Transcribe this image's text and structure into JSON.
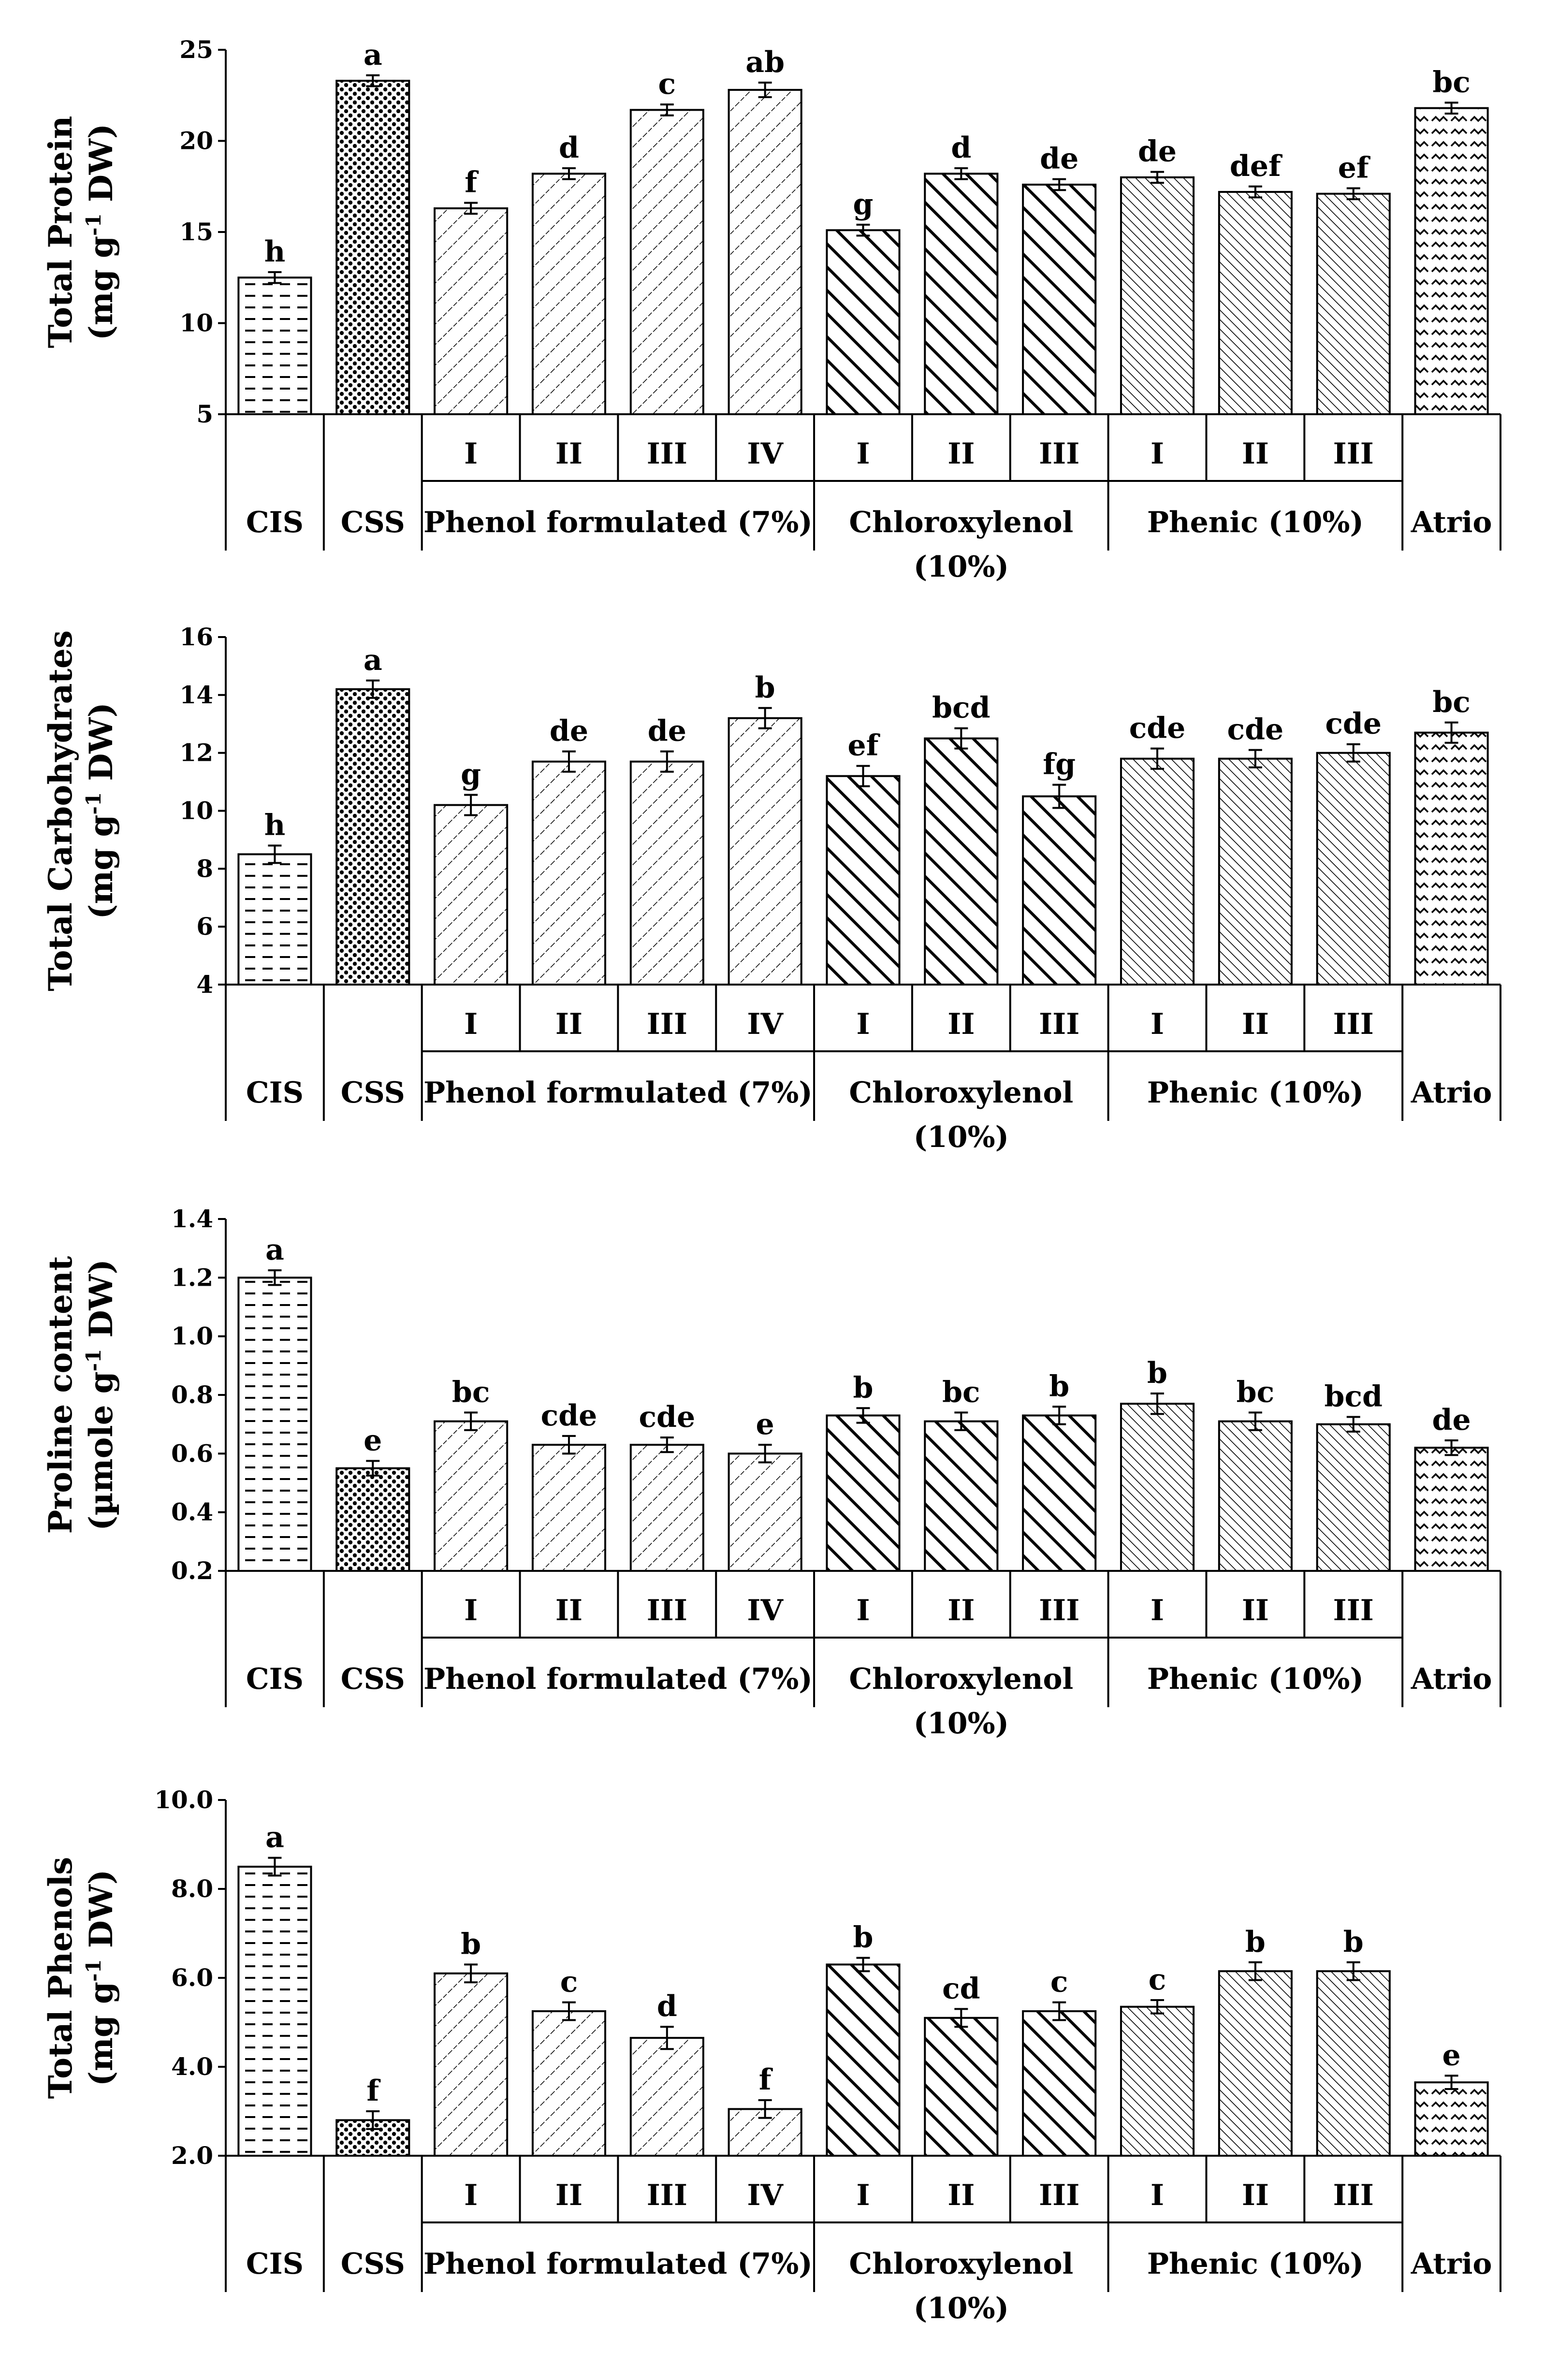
{
  "chart_data": [
    {
      "type": "bar",
      "ylabel_line1": "Total Protein",
      "ylabel_line2": "(mg g",
      "ylabel_sup": "-1",
      "ylabel_line2_tail": " DW)",
      "ylim": [
        5,
        25
      ],
      "yticks": [
        "5",
        "10",
        "15",
        "20",
        "25"
      ],
      "categories": [
        "CIS",
        "CSS",
        "Phenol formulated (7%) I",
        "Phenol formulated (7%) II",
        "Phenol formulated (7%) III",
        "Phenol formulated (7%) IV",
        "Chloroxylenol (10%) I",
        "Chloroxylenol (10%) II",
        "Chloroxylenol (10%) III",
        "Phenic (10%) I",
        "Phenic (10%) II",
        "Phenic (10%) III",
        "Atrio"
      ],
      "values": [
        12.5,
        23.3,
        16.3,
        18.2,
        21.7,
        22.8,
        15.1,
        18.2,
        17.6,
        18.0,
        17.2,
        17.1,
        21.8
      ],
      "errors": [
        0.3,
        0.3,
        0.3,
        0.3,
        0.3,
        0.4,
        0.3,
        0.3,
        0.3,
        0.3,
        0.3,
        0.3,
        0.3
      ],
      "letters": [
        "h",
        "a",
        "f",
        "d",
        "c",
        "ab",
        "g",
        "d",
        "de",
        "de",
        "def",
        "ef",
        "bc"
      ],
      "grid": false
    },
    {
      "type": "bar",
      "ylabel_line1": "Total Carbohydrates",
      "ylabel_line2": "(mg g",
      "ylabel_sup": "-1",
      "ylabel_line2_tail": " DW)",
      "ylim": [
        4,
        16
      ],
      "yticks": [
        "4",
        "6",
        "8",
        "10",
        "12",
        "14",
        "16"
      ],
      "categories": [
        "CIS",
        "CSS",
        "Phenol formulated (7%) I",
        "Phenol formulated (7%) II",
        "Phenol formulated (7%) III",
        "Phenol formulated (7%) IV",
        "Chloroxylenol (10%) I",
        "Chloroxylenol (10%) II",
        "Chloroxylenol (10%) III",
        "Phenic (10%) I",
        "Phenic (10%) II",
        "Phenic (10%) III",
        "Atrio"
      ],
      "values": [
        8.5,
        14.2,
        10.2,
        11.7,
        11.7,
        13.2,
        11.2,
        12.5,
        10.5,
        11.8,
        11.8,
        12.0,
        12.7
      ],
      "errors": [
        0.3,
        0.3,
        0.35,
        0.35,
        0.35,
        0.35,
        0.35,
        0.35,
        0.4,
        0.35,
        0.3,
        0.3,
        0.35
      ],
      "letters": [
        "h",
        "a",
        "g",
        "de",
        "de",
        "b",
        "ef",
        "bcd",
        "fg",
        "cde",
        "cde",
        "cde",
        "bc"
      ],
      "grid": false
    },
    {
      "type": "bar",
      "ylabel_line1": "Proline content",
      "ylabel_line2": "(µmole g",
      "ylabel_sup": "-1",
      "ylabel_line2_tail": " DW)",
      "ylim": [
        0.2,
        1.4
      ],
      "yticks": [
        "0.2",
        "0.4",
        "0.6",
        "0.8",
        "1.0",
        "1.2",
        "1.4"
      ],
      "categories": [
        "CIS",
        "CSS",
        "Phenol formulated (7%) I",
        "Phenol formulated (7%) II",
        "Phenol formulated (7%) III",
        "Phenol formulated (7%) IV",
        "Chloroxylenol (10%) I",
        "Chloroxylenol (10%) II",
        "Chloroxylenol (10%) III",
        "Phenic (10%) I",
        "Phenic (10%) II",
        "Phenic (10%) III",
        "Atrio"
      ],
      "values": [
        1.2,
        0.55,
        0.71,
        0.63,
        0.63,
        0.6,
        0.73,
        0.71,
        0.73,
        0.77,
        0.71,
        0.7,
        0.62
      ],
      "errors": [
        0.025,
        0.025,
        0.03,
        0.03,
        0.025,
        0.03,
        0.025,
        0.03,
        0.03,
        0.035,
        0.03,
        0.025,
        0.025
      ],
      "letters": [
        "a",
        "e",
        "bc",
        "cde",
        "cde",
        "e",
        "b",
        "bc",
        "b",
        "b",
        "bc",
        "bcd",
        "de"
      ],
      "grid": false
    },
    {
      "type": "bar",
      "ylabel_line1": "Total Phenols",
      "ylabel_line2": "(mg g",
      "ylabel_sup": "-1",
      "ylabel_line2_tail": " DW)",
      "ylim": [
        2.0,
        10.0
      ],
      "yticks": [
        "2.0",
        "4.0",
        "6.0",
        "8.0",
        "10.0"
      ],
      "categories": [
        "CIS",
        "CSS",
        "Phenol formulated (7%) I",
        "Phenol formulated (7%) II",
        "Phenol formulated (7%) III",
        "Phenol formulated (7%) IV",
        "Chloroxylenol (10%) I",
        "Chloroxylenol (10%) II",
        "Chloroxylenol (10%) III",
        "Phenic (10%) I",
        "Phenic (10%) II",
        "Phenic (10%) III",
        "Atrio"
      ],
      "values": [
        8.5,
        2.8,
        6.1,
        5.25,
        4.65,
        3.05,
        6.3,
        5.1,
        5.25,
        5.35,
        6.15,
        6.15,
        3.65
      ],
      "errors": [
        0.2,
        0.2,
        0.2,
        0.2,
        0.25,
        0.2,
        0.15,
        0.2,
        0.2,
        0.15,
        0.2,
        0.2,
        0.15
      ],
      "letters": [
        "a",
        "f",
        "b",
        "c",
        "d",
        "f",
        "b",
        "cd",
        "c",
        "c",
        "b",
        "b",
        "e"
      ],
      "grid": false
    }
  ],
  "axis_labels": {
    "roman": [
      "I",
      "II",
      "III",
      "IV"
    ],
    "groups": [
      {
        "lines": [
          "CIS"
        ]
      },
      {
        "lines": [
          "CSS"
        ]
      },
      {
        "lines": [
          "Phenol formulated (7%)"
        ]
      },
      {
        "lines": [
          "Chloroxylenol",
          "(10%)"
        ]
      },
      {
        "lines": [
          "Phenic (10%)"
        ]
      },
      {
        "lines": [
          "Atrio"
        ]
      }
    ]
  },
  "bar_styles": [
    "dash-h",
    "dots",
    "diag-thin",
    "diag-thin",
    "diag-thin",
    "diag-thin",
    "diag-thick",
    "diag-thick",
    "diag-thick",
    "diag-dense",
    "diag-dense",
    "diag-dense",
    "dash-zz"
  ],
  "colors": {
    "ink": "#000000",
    "background": "#ffffff"
  }
}
